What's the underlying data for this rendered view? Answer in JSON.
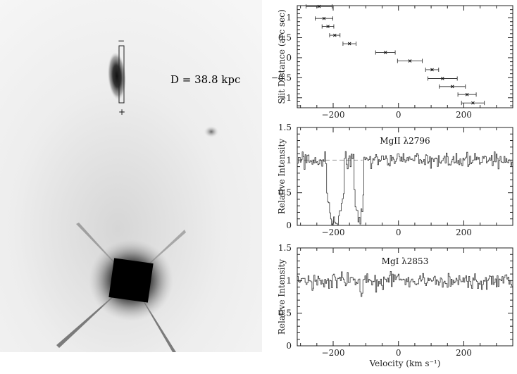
{
  "image_panel": {
    "distance_label": "D = 38.8 kpc",
    "slit_minus": "−",
    "slit_plus": "+"
  },
  "chart_data": [
    {
      "type": "scatter",
      "title": "",
      "xlabel": "",
      "ylabel": "Slit Distance (arc sec)",
      "xlim": [
        -310,
        350
      ],
      "ylim": [
        -1.25,
        1.3
      ],
      "xticks": [
        "−200",
        "0",
        "200"
      ],
      "yticks": [
        "1",
        "0.5",
        "0",
        "−0.5",
        "−1"
      ],
      "error_bars": "horizontal",
      "points": [
        {
          "x": -243,
          "y": 1.28,
          "xerr": 40
        },
        {
          "x": -228,
          "y": 0.98,
          "xerr": 27
        },
        {
          "x": -216,
          "y": 0.78,
          "xerr": 18
        },
        {
          "x": -195,
          "y": 0.56,
          "xerr": 16
        },
        {
          "x": -150,
          "y": 0.35,
          "xerr": 20
        },
        {
          "x": -40,
          "y": 0.13,
          "xerr": 30
        },
        {
          "x": 35,
          "y": -0.08,
          "xerr": 38
        },
        {
          "x": 103,
          "y": -0.3,
          "xerr": 20
        },
        {
          "x": 135,
          "y": -0.52,
          "xerr": 45
        },
        {
          "x": 165,
          "y": -0.72,
          "xerr": 40
        },
        {
          "x": 210,
          "y": -0.92,
          "xerr": 28
        },
        {
          "x": 228,
          "y": -1.13,
          "xerr": 35
        }
      ]
    },
    {
      "type": "line",
      "title": "",
      "xlabel": "",
      "ylabel": "Relative Intensity",
      "annotation": "MgII λ2796",
      "xlim": [
        -310,
        350
      ],
      "ylim": [
        0,
        1.5
      ],
      "xticks": [
        "−200",
        "0",
        "200"
      ],
      "yticks": [
        "1.5",
        "1",
        "0.5",
        "0"
      ],
      "continuum": 1.0,
      "absorption": [
        {
          "center": -195,
          "width": 55,
          "depth": 0.97
        },
        {
          "center": -122,
          "width": 30,
          "depth": 0.97
        }
      ],
      "noise": 0.06
    },
    {
      "type": "line",
      "title": "",
      "xlabel": "Velocity (km s⁻¹)",
      "ylabel": "Relative Intensity",
      "annotation": "MgI λ2853",
      "xlim": [
        -310,
        350
      ],
      "ylim": [
        0,
        1.5
      ],
      "xticks": [
        "−200",
        "0",
        "200"
      ],
      "yticks": [
        "1.5",
        "1",
        "0.5",
        "0"
      ],
      "continuum": 1.0,
      "absorption": [
        {
          "center": -115,
          "width": 8,
          "depth": 0.25
        }
      ],
      "noise": 0.06
    }
  ]
}
